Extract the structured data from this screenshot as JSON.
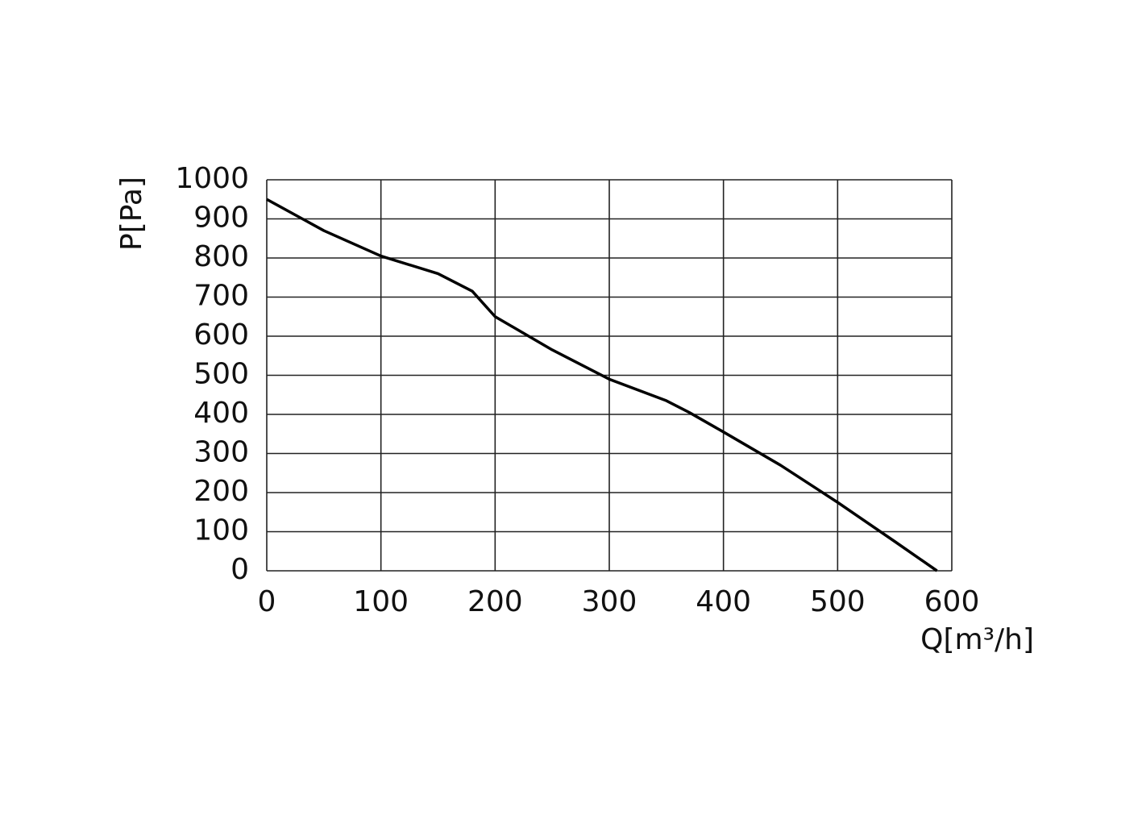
{
  "chart_data": {
    "type": "line",
    "x_label": "Q[m³/h]",
    "y_label": "P[Pa]",
    "x": [
      0,
      50,
      100,
      150,
      180,
      200,
      250,
      300,
      350,
      370,
      400,
      450,
      500,
      550,
      587
    ],
    "series": [
      {
        "color": "#000000",
        "values": [
          950,
          870,
          805,
          760,
          715,
          650,
          565,
          490,
          435,
          405,
          355,
          270,
          175,
          75,
          0
        ]
      }
    ],
    "xlim": [
      0,
      600
    ],
    "xticks": [
      0,
      100,
      200,
      300,
      400,
      500,
      600
    ],
    "ylim": [
      0,
      1000
    ],
    "yticks": [
      0,
      100,
      200,
      300,
      400,
      500,
      600,
      700,
      800,
      900,
      1000
    ],
    "grid": true
  }
}
